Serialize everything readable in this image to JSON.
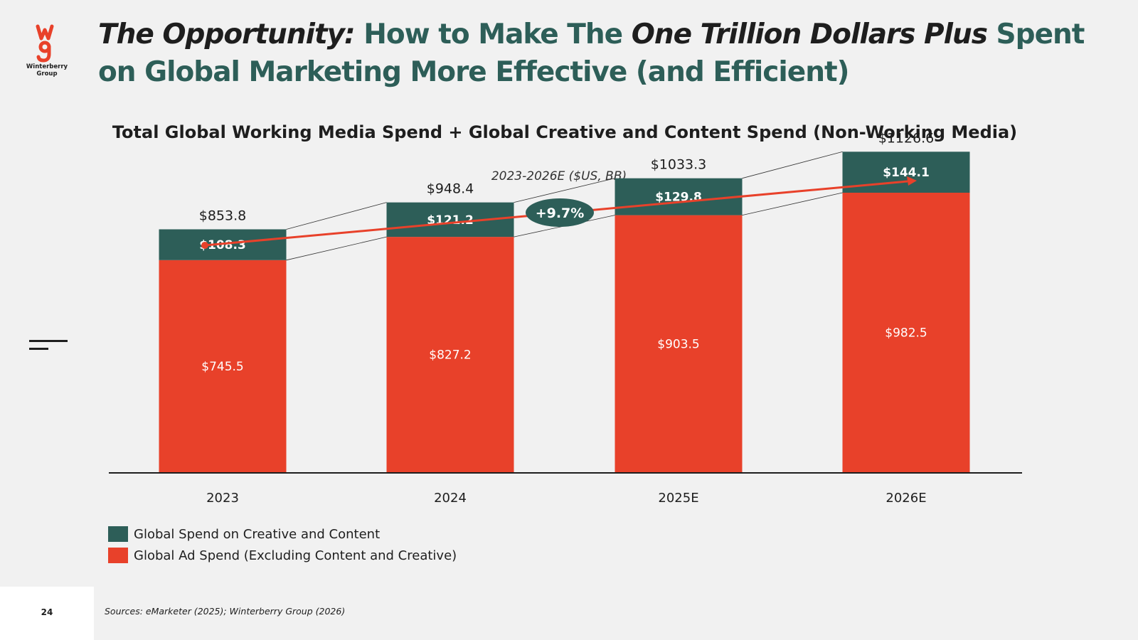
{
  "logo": {
    "text": "Winterberry Group",
    "mark": "wg-logo-icon",
    "color": "#e8412a"
  },
  "headline": {
    "part1": "The Opportunity:",
    "part2": " How to Make The ",
    "part3": "One Trillion Dollars Plus",
    "part4": " Spent on Global Marketing More Effective (and Efficient)"
  },
  "colors": {
    "accent_green": "#2d5e58",
    "accent_red": "#e8412a",
    "background": "#f1f1f1"
  },
  "chart_data": {
    "type": "bar",
    "stacked": true,
    "title": "Total Global Working Media Spend + Global Creative and Content Spend (Non-Working Media)",
    "subtitle": "2023-2026E ($US, BB)",
    "categories": [
      "2023",
      "2024",
      "2025E",
      "2026E"
    ],
    "series": [
      {
        "name": "Global Ad Spend (Excluding Content and Creative)",
        "color": "#e8412a",
        "values": [
          745.5,
          827.2,
          903.5,
          982.5
        ],
        "labels": [
          "$745.5",
          "$827.2",
          "$903.5",
          "$982.5"
        ]
      },
      {
        "name": "Global Spend on Creative and Content",
        "color": "#2d5e58",
        "values": [
          108.3,
          121.2,
          129.8,
          144.1
        ],
        "labels": [
          "$108.3",
          "$121.2",
          "$129.8",
          "$144.1"
        ]
      }
    ],
    "totals": [
      853.8,
      948.4,
      1033.3,
      1126.6
    ],
    "total_labels": [
      "$853.8",
      "$948.4",
      "$1033.3",
      "$1126.6"
    ],
    "growth_annotation": "+9.7%",
    "legend_position": "bottom-left",
    "grid": false
  },
  "footer": {
    "page_number": "24",
    "sources": "Sources: eMarketer (2025); Winterberry Group (2026)"
  }
}
